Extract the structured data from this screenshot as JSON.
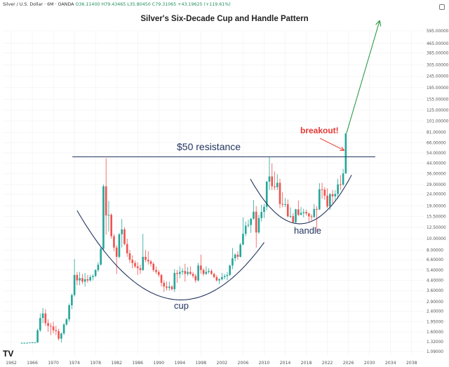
{
  "header": {
    "symbol": "Silver / U.S. Dollar · 6M · OANDA",
    "ohlc": "O36.11400 H79.43465 L35.80450 C79.31065 +43.19625 (+119.61%)"
  },
  "annotations": {
    "resistance": "$50 resistance",
    "cup": "cup",
    "handle": "handle",
    "breakout": "breakout!"
  },
  "logo": "TV",
  "colors": {
    "up": "#26a69a",
    "down": "#ef5350",
    "curve": "#23355f",
    "resistance_line": "#23355f",
    "breakout_arrow": "#e53935",
    "projection_arrow": "#2e9d4a",
    "grid": "#f0f0f0"
  },
  "chart_data": {
    "type": "candlestick",
    "title": "Silver's Six-Decade Cup and Handle Pattern",
    "xlabel": "",
    "ylabel": "",
    "scale": "log",
    "x_ticks": [
      "1962",
      "1966",
      "1970",
      "1974",
      "1978",
      "1982",
      "1986",
      "1990",
      "1994",
      "1998",
      "2002",
      "2006",
      "2010",
      "2014",
      "2018",
      "2022",
      "2026",
      "2030",
      "2034",
      "2038"
    ],
    "y_ticks": [
      "595.00000",
      "465.00000",
      "385.00000",
      "305.00000",
      "245.00000",
      "195.00000",
      "155.00000",
      "125.00000",
      "101.00000",
      "81.00000",
      "66.00000",
      "54.00000",
      "44.00000",
      "36.00000",
      "29.00000",
      "24.00000",
      "19.00000",
      "15.50000",
      "12.50000",
      "10.00000",
      "8.00000",
      "6.60000",
      "5.40000",
      "4.40000",
      "3.60000",
      "2.90000",
      "2.40000",
      "1.95000",
      "1.60000",
      "1.32000",
      "1.09000"
    ],
    "resistance_level": 50,
    "projection_target": 720,
    "candles": [
      {
        "t": 1964.0,
        "o": 1.29,
        "h": 1.3,
        "l": 1.29,
        "c": 1.29
      },
      {
        "t": 1964.5,
        "o": 1.29,
        "h": 1.3,
        "l": 1.29,
        "c": 1.29
      },
      {
        "t": 1965.0,
        "o": 1.29,
        "h": 1.3,
        "l": 1.29,
        "c": 1.29
      },
      {
        "t": 1965.5,
        "o": 1.29,
        "h": 1.3,
        "l": 1.29,
        "c": 1.3
      },
      {
        "t": 1966.0,
        "o": 1.29,
        "h": 1.31,
        "l": 1.29,
        "c": 1.3
      },
      {
        "t": 1966.5,
        "o": 1.3,
        "h": 1.31,
        "l": 1.29,
        "c": 1.3
      },
      {
        "t": 1967.0,
        "o": 1.3,
        "h": 1.7,
        "l": 1.29,
        "c": 1.65
      },
      {
        "t": 1967.5,
        "o": 1.65,
        "h": 2.3,
        "l": 1.6,
        "c": 2.1
      },
      {
        "t": 1968.0,
        "o": 2.1,
        "h": 2.56,
        "l": 1.9,
        "c": 2.3
      },
      {
        "t": 1968.5,
        "o": 2.3,
        "h": 2.5,
        "l": 1.8,
        "c": 1.9
      },
      {
        "t": 1969.0,
        "o": 1.9,
        "h": 2.05,
        "l": 1.6,
        "c": 1.8
      },
      {
        "t": 1969.5,
        "o": 1.8,
        "h": 1.9,
        "l": 1.5,
        "c": 1.78
      },
      {
        "t": 1970.0,
        "o": 1.78,
        "h": 1.95,
        "l": 1.55,
        "c": 1.65
      },
      {
        "t": 1970.5,
        "o": 1.65,
        "h": 1.8,
        "l": 1.5,
        "c": 1.62
      },
      {
        "t": 1971.0,
        "o": 1.62,
        "h": 1.7,
        "l": 1.35,
        "c": 1.4
      },
      {
        "t": 1971.5,
        "o": 1.4,
        "h": 1.58,
        "l": 1.3,
        "c": 1.55
      },
      {
        "t": 1972.0,
        "o": 1.55,
        "h": 1.9,
        "l": 1.5,
        "c": 1.85
      },
      {
        "t": 1972.5,
        "o": 1.85,
        "h": 2.1,
        "l": 1.8,
        "c": 2.05
      },
      {
        "t": 1973.0,
        "o": 2.05,
        "h": 2.8,
        "l": 1.95,
        "c": 2.7
      },
      {
        "t": 1973.5,
        "o": 2.7,
        "h": 3.4,
        "l": 2.5,
        "c": 3.3
      },
      {
        "t": 1974.0,
        "o": 3.3,
        "h": 6.7,
        "l": 3.2,
        "c": 4.9
      },
      {
        "t": 1974.5,
        "o": 4.9,
        "h": 5.2,
        "l": 4.0,
        "c": 4.4
      },
      {
        "t": 1975.0,
        "o": 4.4,
        "h": 5.2,
        "l": 4.0,
        "c": 4.6
      },
      {
        "t": 1975.5,
        "o": 4.6,
        "h": 5.0,
        "l": 4.1,
        "c": 4.3
      },
      {
        "t": 1976.0,
        "o": 4.3,
        "h": 5.1,
        "l": 3.9,
        "c": 4.5
      },
      {
        "t": 1976.5,
        "o": 4.5,
        "h": 4.9,
        "l": 4.2,
        "c": 4.4
      },
      {
        "t": 1977.0,
        "o": 4.4,
        "h": 4.9,
        "l": 4.3,
        "c": 4.7
      },
      {
        "t": 1977.5,
        "o": 4.7,
        "h": 4.95,
        "l": 4.4,
        "c": 4.8
      },
      {
        "t": 1978.0,
        "o": 4.8,
        "h": 5.5,
        "l": 4.7,
        "c": 5.4
      },
      {
        "t": 1978.5,
        "o": 5.4,
        "h": 6.3,
        "l": 5.2,
        "c": 6.0
      },
      {
        "t": 1979.0,
        "o": 6.0,
        "h": 8.5,
        "l": 5.9,
        "c": 8.2
      },
      {
        "t": 1979.5,
        "o": 8.2,
        "h": 29.0,
        "l": 8.0,
        "c": 28.0
      },
      {
        "t": 1980.0,
        "o": 28.0,
        "h": 48.7,
        "l": 10.8,
        "c": 15.8
      },
      {
        "t": 1980.5,
        "o": 15.8,
        "h": 21.0,
        "l": 11.5,
        "c": 16.0
      },
      {
        "t": 1981.0,
        "o": 16.0,
        "h": 16.5,
        "l": 10.0,
        "c": 10.5
      },
      {
        "t": 1981.5,
        "o": 10.5,
        "h": 11.0,
        "l": 7.8,
        "c": 8.4
      },
      {
        "t": 1982.0,
        "o": 8.4,
        "h": 8.8,
        "l": 5.0,
        "c": 7.0
      },
      {
        "t": 1982.5,
        "o": 7.0,
        "h": 11.2,
        "l": 6.8,
        "c": 10.9
      },
      {
        "t": 1983.0,
        "o": 10.9,
        "h": 14.7,
        "l": 8.4,
        "c": 12.0
      },
      {
        "t": 1983.5,
        "o": 12.0,
        "h": 12.5,
        "l": 8.8,
        "c": 9.0
      },
      {
        "t": 1984.0,
        "o": 9.0,
        "h": 10.0,
        "l": 7.0,
        "c": 7.5
      },
      {
        "t": 1984.5,
        "o": 7.5,
        "h": 8.0,
        "l": 6.2,
        "c": 6.6
      },
      {
        "t": 1985.0,
        "o": 6.6,
        "h": 7.2,
        "l": 5.6,
        "c": 6.2
      },
      {
        "t": 1985.5,
        "o": 6.2,
        "h": 6.5,
        "l": 5.6,
        "c": 5.8
      },
      {
        "t": 1986.0,
        "o": 5.8,
        "h": 6.3,
        "l": 4.9,
        "c": 5.6
      },
      {
        "t": 1986.5,
        "o": 5.6,
        "h": 6.0,
        "l": 5.0,
        "c": 5.4
      },
      {
        "t": 1987.0,
        "o": 5.4,
        "h": 11.0,
        "l": 5.3,
        "c": 7.0
      },
      {
        "t": 1987.5,
        "o": 7.0,
        "h": 8.0,
        "l": 6.3,
        "c": 6.6
      },
      {
        "t": 1988.0,
        "o": 6.6,
        "h": 7.8,
        "l": 6.0,
        "c": 6.4
      },
      {
        "t": 1988.5,
        "o": 6.4,
        "h": 6.6,
        "l": 5.8,
        "c": 6.1
      },
      {
        "t": 1989.0,
        "o": 6.1,
        "h": 6.3,
        "l": 5.2,
        "c": 5.4
      },
      {
        "t": 1989.5,
        "o": 5.4,
        "h": 5.8,
        "l": 5.0,
        "c": 5.2
      },
      {
        "t": 1990.0,
        "o": 5.2,
        "h": 5.4,
        "l": 4.7,
        "c": 4.9
      },
      {
        "t": 1990.5,
        "o": 4.9,
        "h": 5.0,
        "l": 3.9,
        "c": 4.2
      },
      {
        "t": 1991.0,
        "o": 4.2,
        "h": 4.4,
        "l": 3.5,
        "c": 3.9
      },
      {
        "t": 1991.5,
        "o": 3.9,
        "h": 4.3,
        "l": 3.6,
        "c": 3.8
      },
      {
        "t": 1992.0,
        "o": 3.8,
        "h": 4.3,
        "l": 3.6,
        "c": 3.9
      },
      {
        "t": 1992.5,
        "o": 3.9,
        "h": 4.0,
        "l": 3.6,
        "c": 3.7
      },
      {
        "t": 1993.0,
        "o": 3.7,
        "h": 5.5,
        "l": 3.5,
        "c": 5.1
      },
      {
        "t": 1993.5,
        "o": 5.1,
        "h": 5.4,
        "l": 4.2,
        "c": 5.0
      },
      {
        "t": 1994.0,
        "o": 5.0,
        "h": 5.8,
        "l": 4.6,
        "c": 5.2
      },
      {
        "t": 1994.5,
        "o": 5.2,
        "h": 5.6,
        "l": 4.9,
        "c": 5.3
      },
      {
        "t": 1995.0,
        "o": 5.3,
        "h": 6.1,
        "l": 4.3,
        "c": 5.0
      },
      {
        "t": 1995.5,
        "o": 5.0,
        "h": 5.7,
        "l": 4.8,
        "c": 5.2
      },
      {
        "t": 1996.0,
        "o": 5.2,
        "h": 5.8,
        "l": 4.9,
        "c": 5.0
      },
      {
        "t": 1996.5,
        "o": 5.0,
        "h": 5.2,
        "l": 4.6,
        "c": 4.8
      },
      {
        "t": 1997.0,
        "o": 4.8,
        "h": 5.0,
        "l": 4.2,
        "c": 4.4
      },
      {
        "t": 1997.5,
        "o": 4.4,
        "h": 6.2,
        "l": 4.3,
        "c": 5.9
      },
      {
        "t": 1998.0,
        "o": 5.9,
        "h": 7.3,
        "l": 5.0,
        "c": 5.4
      },
      {
        "t": 1998.5,
        "o": 5.4,
        "h": 5.6,
        "l": 4.8,
        "c": 5.0
      },
      {
        "t": 1999.0,
        "o": 5.0,
        "h": 5.8,
        "l": 4.9,
        "c": 5.2
      },
      {
        "t": 1999.5,
        "o": 5.2,
        "h": 5.6,
        "l": 5.0,
        "c": 5.3
      },
      {
        "t": 2000.0,
        "o": 5.3,
        "h": 5.5,
        "l": 4.9,
        "c": 5.0
      },
      {
        "t": 2000.5,
        "o": 5.0,
        "h": 5.1,
        "l": 4.6,
        "c": 4.7
      },
      {
        "t": 2001.0,
        "o": 4.7,
        "h": 4.9,
        "l": 4.3,
        "c": 4.4
      },
      {
        "t": 2001.5,
        "o": 4.4,
        "h": 4.6,
        "l": 4.1,
        "c": 4.5
      },
      {
        "t": 2002.0,
        "o": 4.5,
        "h": 5.1,
        "l": 4.4,
        "c": 4.7
      },
      {
        "t": 2002.5,
        "o": 4.7,
        "h": 5.0,
        "l": 4.5,
        "c": 4.8
      },
      {
        "t": 2003.0,
        "o": 4.8,
        "h": 5.2,
        "l": 4.4,
        "c": 4.9
      },
      {
        "t": 2003.5,
        "o": 4.9,
        "h": 6.0,
        "l": 4.8,
        "c": 5.9
      },
      {
        "t": 2004.0,
        "o": 5.9,
        "h": 8.3,
        "l": 5.5,
        "c": 6.8
      },
      {
        "t": 2004.5,
        "o": 6.8,
        "h": 7.5,
        "l": 6.4,
        "c": 7.3
      },
      {
        "t": 2005.0,
        "o": 7.3,
        "h": 7.8,
        "l": 6.6,
        "c": 7.0
      },
      {
        "t": 2005.5,
        "o": 7.0,
        "h": 9.2,
        "l": 6.9,
        "c": 8.9
      },
      {
        "t": 2006.0,
        "o": 8.9,
        "h": 15.2,
        "l": 8.8,
        "c": 11.0
      },
      {
        "t": 2006.5,
        "o": 11.0,
        "h": 14.0,
        "l": 10.5,
        "c": 12.9
      },
      {
        "t": 2007.0,
        "o": 12.9,
        "h": 14.5,
        "l": 12.5,
        "c": 13.1
      },
      {
        "t": 2007.5,
        "o": 13.1,
        "h": 15.0,
        "l": 11.2,
        "c": 14.8
      },
      {
        "t": 2008.0,
        "o": 14.8,
        "h": 21.4,
        "l": 14.5,
        "c": 17.0
      },
      {
        "t": 2008.5,
        "o": 17.0,
        "h": 19.0,
        "l": 8.4,
        "c": 11.3
      },
      {
        "t": 2009.0,
        "o": 11.3,
        "h": 16.0,
        "l": 11.0,
        "c": 15.0
      },
      {
        "t": 2009.5,
        "o": 15.0,
        "h": 19.5,
        "l": 14.0,
        "c": 16.9
      },
      {
        "t": 2010.0,
        "o": 16.9,
        "h": 19.8,
        "l": 15.0,
        "c": 18.7
      },
      {
        "t": 2010.5,
        "o": 18.7,
        "h": 31.0,
        "l": 17.5,
        "c": 30.7
      },
      {
        "t": 2011.0,
        "o": 30.7,
        "h": 49.8,
        "l": 26.0,
        "c": 34.0
      },
      {
        "t": 2011.5,
        "o": 34.0,
        "h": 44.0,
        "l": 26.0,
        "c": 28.0
      },
      {
        "t": 2012.0,
        "o": 28.0,
        "h": 37.5,
        "l": 26.0,
        "c": 27.5
      },
      {
        "t": 2012.5,
        "o": 27.5,
        "h": 35.5,
        "l": 26.0,
        "c": 30.0
      },
      {
        "t": 2013.0,
        "o": 30.0,
        "h": 32.5,
        "l": 18.2,
        "c": 19.8
      },
      {
        "t": 2013.5,
        "o": 19.8,
        "h": 25.0,
        "l": 18.5,
        "c": 19.5
      },
      {
        "t": 2014.0,
        "o": 19.5,
        "h": 22.2,
        "l": 18.6,
        "c": 19.7
      },
      {
        "t": 2014.5,
        "o": 19.7,
        "h": 21.6,
        "l": 15.2,
        "c": 15.5
      },
      {
        "t": 2015.0,
        "o": 15.5,
        "h": 18.5,
        "l": 15.0,
        "c": 15.6
      },
      {
        "t": 2015.5,
        "o": 15.6,
        "h": 16.5,
        "l": 13.6,
        "c": 13.8
      },
      {
        "t": 2016.0,
        "o": 13.8,
        "h": 18.0,
        "l": 13.6,
        "c": 17.8
      },
      {
        "t": 2016.5,
        "o": 17.8,
        "h": 21.2,
        "l": 15.6,
        "c": 16.0
      },
      {
        "t": 2017.0,
        "o": 16.0,
        "h": 18.6,
        "l": 15.8,
        "c": 16.6
      },
      {
        "t": 2017.5,
        "o": 16.6,
        "h": 18.0,
        "l": 15.2,
        "c": 16.9
      },
      {
        "t": 2018.0,
        "o": 16.9,
        "h": 17.7,
        "l": 15.8,
        "c": 16.4
      },
      {
        "t": 2018.5,
        "o": 16.4,
        "h": 16.7,
        "l": 13.9,
        "c": 15.5
      },
      {
        "t": 2019.0,
        "o": 15.5,
        "h": 16.2,
        "l": 14.3,
        "c": 15.3
      },
      {
        "t": 2019.5,
        "o": 15.3,
        "h": 19.7,
        "l": 15.0,
        "c": 17.9
      },
      {
        "t": 2020.0,
        "o": 17.9,
        "h": 19.0,
        "l": 11.6,
        "c": 17.8
      },
      {
        "t": 2020.5,
        "o": 17.8,
        "h": 29.8,
        "l": 17.5,
        "c": 26.4
      },
      {
        "t": 2021.0,
        "o": 26.4,
        "h": 30.0,
        "l": 21.9,
        "c": 26.2
      },
      {
        "t": 2021.5,
        "o": 26.2,
        "h": 27.5,
        "l": 21.5,
        "c": 23.3
      },
      {
        "t": 2022.0,
        "o": 23.3,
        "h": 26.9,
        "l": 18.2,
        "c": 18.8
      },
      {
        "t": 2022.5,
        "o": 18.8,
        "h": 24.6,
        "l": 17.6,
        "c": 24.0
      },
      {
        "t": 2023.0,
        "o": 24.0,
        "h": 26.1,
        "l": 20.0,
        "c": 23.0
      },
      {
        "t": 2023.5,
        "o": 23.0,
        "h": 25.9,
        "l": 20.7,
        "c": 24.1
      },
      {
        "t": 2024.0,
        "o": 24.1,
        "h": 32.5,
        "l": 21.9,
        "c": 29.1
      },
      {
        "t": 2024.5,
        "o": 29.1,
        "h": 34.9,
        "l": 26.0,
        "c": 28.9
      },
      {
        "t": 2025.0,
        "o": 28.9,
        "h": 39.5,
        "l": 28.3,
        "c": 36.11
      },
      {
        "t": 2025.5,
        "o": 36.11,
        "h": 79.43,
        "l": 35.8,
        "c": 79.31
      }
    ]
  }
}
